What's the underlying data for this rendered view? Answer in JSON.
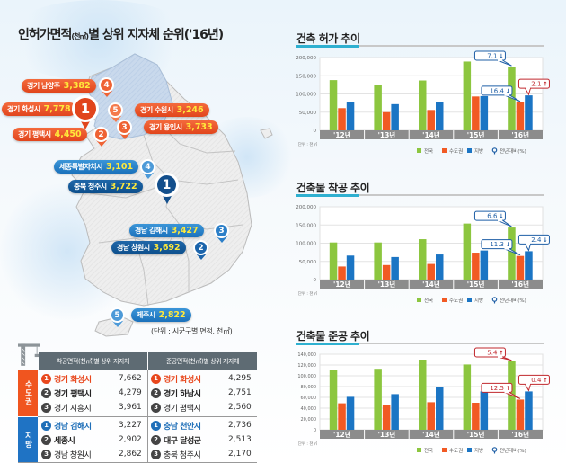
{
  "title": {
    "main": "인허가면적",
    "unit": "(천㎡)",
    "rest": "별 상위 지자체 순위('16년)"
  },
  "map": {
    "metro_callouts": [
      {
        "rank": "4",
        "name": "경기 남양주",
        "value": "3,382"
      },
      {
        "rank": "1",
        "name": "경기 화성시",
        "value": "7,778"
      },
      {
        "rank": "5",
        "name": "경기 수원시",
        "value": "3,246"
      },
      {
        "rank": "3",
        "name": "경기 용인시",
        "value": "3,733"
      },
      {
        "rank": "2",
        "name": "경기 평택시",
        "value": "4,450"
      }
    ],
    "local_callouts": [
      {
        "rank": "4",
        "name": "세종특별자치시",
        "value": "3,101"
      },
      {
        "rank": "1",
        "name": "충북 청주시",
        "value": "3,722"
      },
      {
        "rank": "3",
        "name": "경남 김해시",
        "value": "3,427"
      },
      {
        "rank": "2",
        "name": "경남 창원시",
        "value": "3,692"
      },
      {
        "rank": "5",
        "name": "제주시",
        "value": "2,822"
      }
    ],
    "unit_note": "(단위 : 시군구별 면적, 천㎡)"
  },
  "table": {
    "headers": [
      "착공면적(천㎡)별 상위 지자체",
      "준공면적(천㎡)별 상위 지자체"
    ],
    "groups": [
      {
        "label": "수도권",
        "start": [
          {
            "rank": "1",
            "city": "경기 화성시",
            "value": "7,662"
          },
          {
            "rank": "2",
            "city": "경기 평택시",
            "value": "4,279"
          },
          {
            "rank": "3",
            "city": "경기 시흥시",
            "value": "3,961"
          }
        ],
        "complete": [
          {
            "rank": "1",
            "city": "경기 화성시",
            "value": "4,295"
          },
          {
            "rank": "2",
            "city": "경기 하남시",
            "value": "2,751"
          },
          {
            "rank": "3",
            "city": "경기 평택시",
            "value": "2,560"
          }
        ]
      },
      {
        "label": "지방",
        "start": [
          {
            "rank": "1",
            "city": "경남 김해시",
            "value": "3,227"
          },
          {
            "rank": "2",
            "city": "세종시",
            "value": "2,902"
          },
          {
            "rank": "3",
            "city": "경남 창원시",
            "value": "2,862"
          }
        ],
        "complete": [
          {
            "rank": "1",
            "city": "충남 천안시",
            "value": "2,736"
          },
          {
            "rank": "2",
            "city": "대구 달성군",
            "value": "2,513"
          },
          {
            "rank": "3",
            "city": "충북 청주시",
            "value": "2,170"
          }
        ]
      }
    ]
  },
  "colors": {
    "national": "#8cc63f",
    "metro": "#f15a24",
    "local": "#1b75c4",
    "metro_accent": "#e8471d",
    "local_accent": "#1f6fb8",
    "axis_band": "#8c8c8c",
    "callout_down": "#1f5fa6",
    "callout_up": "#c1272d"
  },
  "chart_data": [
    {
      "type": "bar",
      "title": "건축 허가 추이",
      "unit_label": "단위 : 천㎡",
      "categories": [
        "'12년",
        "'13년",
        "'14년",
        "'15년",
        "'16년"
      ],
      "ylim": [
        0,
        200000
      ],
      "yticks": [
        0,
        50000,
        100000,
        150000,
        200000
      ],
      "ytick_labels": [
        "0",
        "50,000",
        "100,000",
        "150,000",
        "200,000"
      ],
      "grid": true,
      "legend": [
        "전국",
        "수도권",
        "지방",
        "전년대비(%)"
      ],
      "legend_position": "bottom-right",
      "series": [
        {
          "name": "전국",
          "values": [
            138000,
            124000,
            137000,
            189000,
            175000
          ]
        },
        {
          "name": "수도권",
          "values": [
            61000,
            50000,
            56000,
            93000,
            77000
          ]
        },
        {
          "name": "지방",
          "values": [
            78000,
            72000,
            78000,
            94000,
            96000
          ]
        }
      ],
      "annotations": [
        {
          "series": "전국",
          "category": "'16년",
          "text": "7.1",
          "direction": "down"
        },
        {
          "series": "수도권",
          "category": "'16년",
          "text": "16.4",
          "direction": "down"
        },
        {
          "series": "지방",
          "category": "'16년",
          "text": "2.1",
          "direction": "up"
        }
      ]
    },
    {
      "type": "bar",
      "title": "건축물 착공 추이",
      "unit_label": "단위 : 천㎡",
      "categories": [
        "'12년",
        "'13년",
        "'14년",
        "'15년",
        "'16년"
      ],
      "ylim": [
        0,
        200000
      ],
      "yticks": [
        0,
        50000,
        100000,
        150000,
        200000
      ],
      "ytick_labels": [
        "0",
        "50,000",
        "100,000",
        "150,000",
        "200,000"
      ],
      "grid": true,
      "legend": [
        "전국",
        "수도권",
        "지방",
        "전년대비(%)"
      ],
      "legend_position": "bottom-right",
      "series": [
        {
          "name": "전국",
          "values": [
            102000,
            102000,
            111000,
            154000,
            143000
          ]
        },
        {
          "name": "수도권",
          "values": [
            36000,
            40000,
            43000,
            74000,
            65000
          ]
        },
        {
          "name": "지방",
          "values": [
            66000,
            62000,
            69000,
            80000,
            78000
          ]
        }
      ],
      "annotations": [
        {
          "series": "전국",
          "category": "'16년",
          "text": "6.6",
          "direction": "down"
        },
        {
          "series": "수도권",
          "category": "'16년",
          "text": "11.3",
          "direction": "down"
        },
        {
          "series": "지방",
          "category": "'16년",
          "text": "2.4",
          "direction": "down"
        }
      ]
    },
    {
      "type": "bar",
      "title": "건축물 준공 추이",
      "unit_label": "단위 : 천㎡",
      "categories": [
        "'12년",
        "'13년",
        "'14년",
        "'15년",
        "'16년"
      ],
      "ylim": [
        0,
        140000
      ],
      "yticks": [
        0,
        20000,
        40000,
        60000,
        80000,
        100000,
        120000,
        140000
      ],
      "ytick_labels": [
        "0",
        "20,000",
        "40,000",
        "60,000",
        "80,000",
        "100,000",
        "120,000",
        "140,000"
      ],
      "grid": true,
      "legend": [
        "전국",
        "수도권",
        "지방",
        "전년대비(%)"
      ],
      "legend_position": "bottom-right",
      "series": [
        {
          "name": "전국",
          "values": [
            111000,
            113000,
            130000,
            121000,
            127000
          ]
        },
        {
          "name": "수도권",
          "values": [
            49000,
            46000,
            51000,
            50000,
            56000
          ]
        },
        {
          "name": "지방",
          "values": [
            61000,
            66000,
            79000,
            71000,
            71000
          ]
        }
      ],
      "annotations": [
        {
          "series": "전국",
          "category": "'16년",
          "text": "5.4",
          "direction": "up"
        },
        {
          "series": "수도권",
          "category": "'16년",
          "text": "12.5",
          "direction": "up"
        },
        {
          "series": "지방",
          "category": "'16년",
          "text": "0.4",
          "direction": "up"
        }
      ]
    }
  ]
}
